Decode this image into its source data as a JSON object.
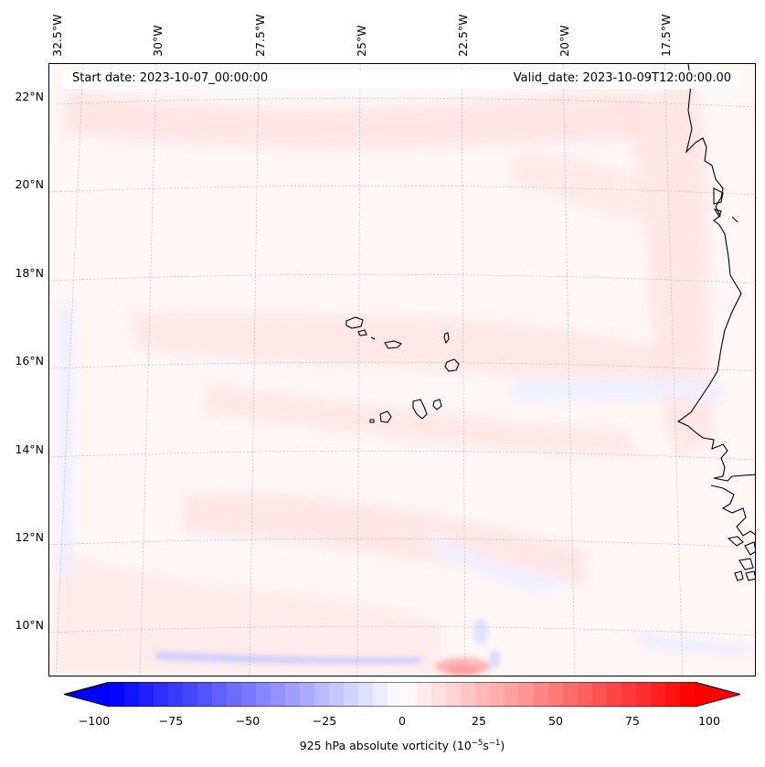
{
  "title_left": "Start date: 2023-10-07_00:00:00",
  "title_right": "Valid_date: 2023-10-09T12:00:00.00",
  "map": {
    "variable": "925 hPa absolute vorticity",
    "projection": "rotated-pole",
    "lon_labels": [
      "32.5°W",
      "30°W",
      "27.5°W",
      "25°W",
      "22.5°W",
      "20°W",
      "17.5°W"
    ],
    "lat_labels": [
      "22°N",
      "20°N",
      "18°N",
      "16°N",
      "14°N",
      "12°N",
      "10°N"
    ],
    "features": [
      "Cape Verde islands",
      "West African coastline"
    ]
  },
  "colorbar": {
    "label_prefix": "925 hPa absolute vorticity (10",
    "label_exp1": "−5",
    "label_mid": "s",
    "label_exp2": "−1",
    "label_suffix": ")",
    "ticks": [
      "−100",
      "−75",
      "−50",
      "−25",
      "0",
      "25",
      "50",
      "75",
      "100"
    ],
    "vmin": -100,
    "vmax": 100,
    "levels": 40,
    "extend": "both",
    "cmap": "bwr",
    "color_min": "#0000ff",
    "color_mid": "#ffffff",
    "color_max": "#ff0000"
  }
}
